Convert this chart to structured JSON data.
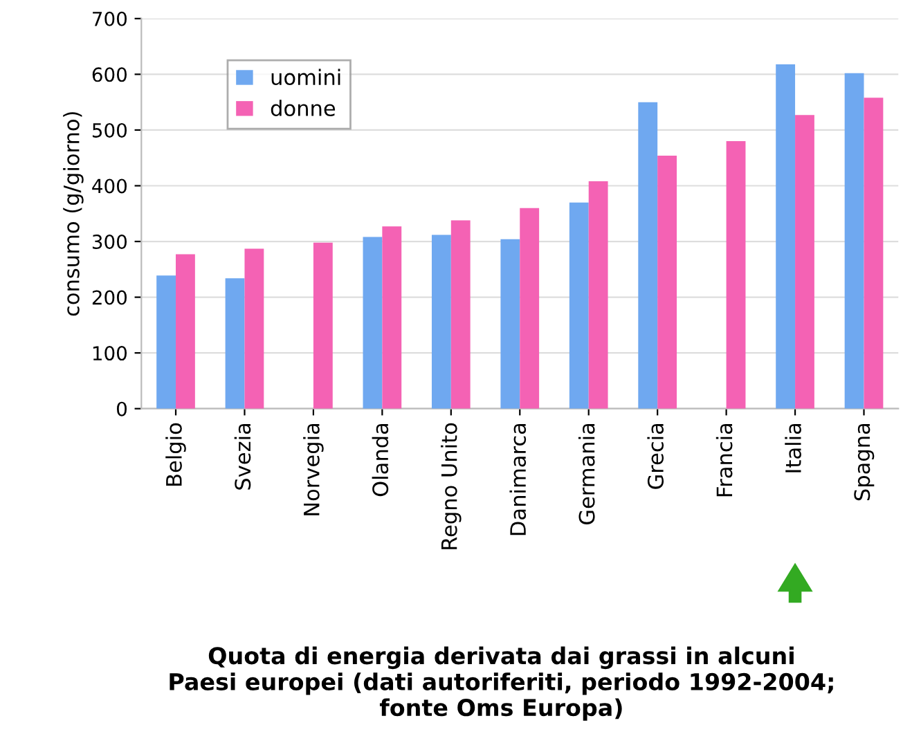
{
  "chart_data": {
    "type": "bar",
    "title": "Quota di energia derivata dai grassi in alcuni\nPaesi europei (dati autoriferiti, periodo 1992-2004;\nfonte Oms Europa)",
    "ylabel": "consumo (g/giorno)",
    "categories": [
      "Belgio",
      "Svezia",
      "Norvegia",
      "Olanda",
      "Regno Unito",
      "Danimarca",
      "Germania",
      "Grecia",
      "Francia",
      "Italia",
      "Spagna"
    ],
    "series": [
      {
        "name": "uomini",
        "color": "#6fa8f0",
        "values": [
          239,
          234,
          null,
          308,
          312,
          304,
          370,
          550,
          null,
          618,
          602
        ]
      },
      {
        "name": "donne",
        "color": "#f462b4",
        "values": [
          277,
          287,
          298,
          327,
          338,
          360,
          408,
          454,
          480,
          527,
          558
        ]
      }
    ],
    "ylim": [
      0,
      700
    ],
    "yticks": [
      0,
      100,
      200,
      300,
      400,
      500,
      600,
      700
    ],
    "grid": "y",
    "legend": "top left"
  }
}
